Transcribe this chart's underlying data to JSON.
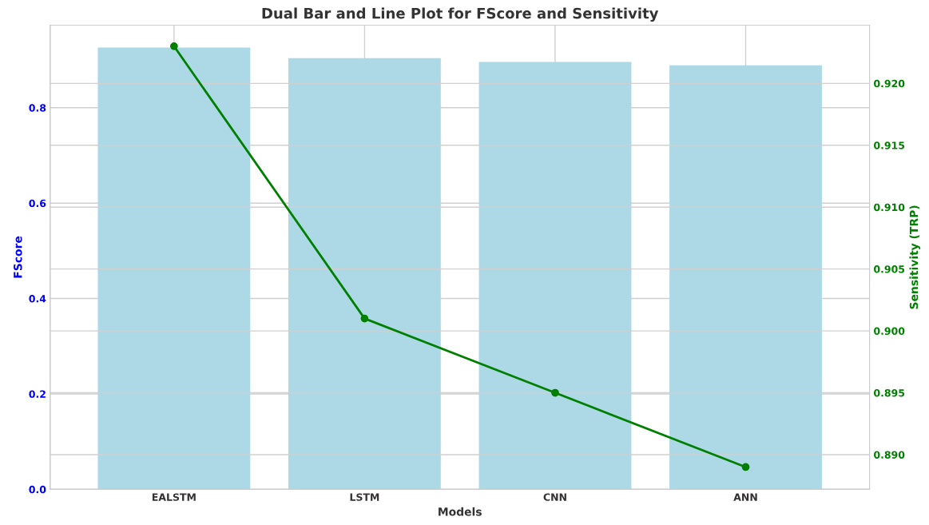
{
  "chart_data": {
    "type": "bar",
    "title": "Dual Bar and Line Plot for FScore and Sensitivity",
    "xlabel": "Models",
    "ylabel": "FScore",
    "y2label": "Sensitivity (TRP)",
    "categories": [
      "EALSTM",
      "LSTM",
      "CNN",
      "ANN"
    ],
    "series": [
      {
        "color": "#add8e6",
        "values": [
          0.926,
          0.904,
          0.896,
          0.889
        ]
      },
      {
        "type": "line",
        "axis": "y2",
        "color": "#008000",
        "marker": "circle",
        "values": [
          0.923,
          0.901,
          0.895,
          0.889
        ]
      }
    ],
    "ylim": [
      0,
      0.973
    ],
    "yticks": [
      {
        "value": 0,
        "label": "0.0"
      },
      {
        "value": 0.2,
        "label": "0.2"
      },
      {
        "value": 0.4,
        "label": "0.4"
      },
      {
        "value": 0.6,
        "label": "0.6"
      },
      {
        "value": 0.8,
        "label": "0.8"
      }
    ],
    "y2lim": [
      0.8872,
      0.9247
    ],
    "y2ticks": [
      {
        "value": 0.89,
        "label": "0.890"
      },
      {
        "value": 0.895,
        "label": "0.895"
      },
      {
        "value": 0.9,
        "label": "0.900"
      },
      {
        "value": 0.905,
        "label": "0.905"
      },
      {
        "value": 0.91,
        "label": "0.910"
      },
      {
        "value": 0.915,
        "label": "0.915"
      },
      {
        "value": 0.92,
        "label": "0.920"
      }
    ],
    "grid": true
  }
}
